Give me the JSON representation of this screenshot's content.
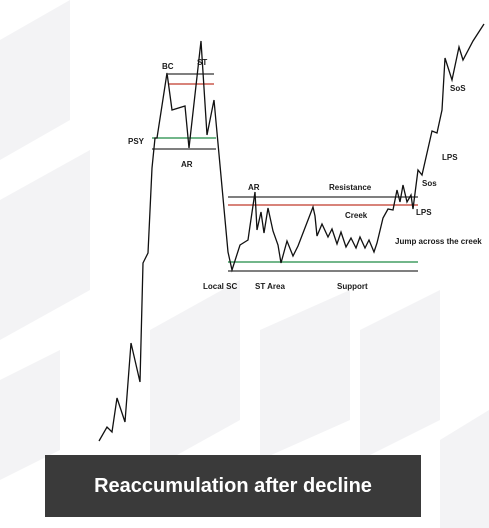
{
  "caption": "Reaccumulation after decline",
  "colors": {
    "price_line": "#111111",
    "resistance_line": "#333333",
    "creek_line": "#c0392b",
    "support_line": "#1e8a44",
    "level_line": "#333333",
    "caption_bg": "#3a3a3a",
    "caption_text": "#ffffff"
  },
  "labels": {
    "bc": "BC",
    "st_top": "ST",
    "psy": "PSY",
    "ar_left": "AR",
    "ar_right": "AR",
    "resistance": "Resistance",
    "creek": "Creek",
    "sos_upper": "SoS",
    "lps_upper": "LPS",
    "sos_lower": "Sos",
    "lps_lower": "LPS",
    "jump": "Jump across the creek",
    "local_sc": "Local SC",
    "st_area": "ST Area",
    "support": "Support"
  }
}
